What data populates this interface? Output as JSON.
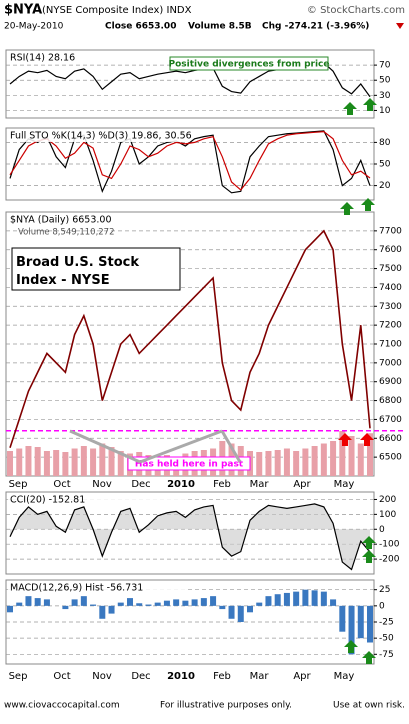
{
  "header": {
    "symbol": "$NYA",
    "name": "(NYSE Composite Index) INDX",
    "source": "© StockCharts.com",
    "date": "20-May-2010",
    "close": "Close 6653.00",
    "volume": "Volume 8.5B",
    "change": "Chg -274.21 (-3.96%)"
  },
  "months": [
    "Sep",
    "Oct",
    "Nov",
    "Dec",
    "2010",
    "Feb",
    "Mar",
    "Apr",
    "May"
  ],
  "footer": {
    "site": "www.ciovaccocapital.com",
    "note": "For illustrative purposes only.",
    "risk": "Use at own risk."
  },
  "chart_data": [
    {
      "type": "line",
      "title": "RSI(14) 28.16",
      "annotation": "Positive divergences from price",
      "ylim": [
        0,
        90
      ],
      "yticks": [
        10,
        30,
        50,
        70
      ],
      "grid": true,
      "series": [
        {
          "color": "#000000",
          "values": [
            45,
            55,
            62,
            60,
            63,
            55,
            52,
            62,
            65,
            55,
            38,
            48,
            58,
            60,
            52,
            55,
            58,
            60,
            62,
            60,
            63,
            65,
            66,
            42,
            35,
            33,
            48,
            55,
            62,
            64,
            66,
            68,
            70,
            72,
            73,
            62,
            40,
            32,
            45,
            28.16
          ]
        }
      ]
    },
    {
      "type": "line",
      "title": "Full STO %K(14,3) %D(3) 19.86, 30.56",
      "ylim": [
        0,
        100
      ],
      "yticks": [
        20,
        50,
        80
      ],
      "grid": true,
      "series": [
        {
          "color": "#000000",
          "values": [
            30,
            70,
            85,
            80,
            88,
            60,
            45,
            85,
            90,
            55,
            12,
            40,
            80,
            85,
            50,
            60,
            75,
            80,
            82,
            75,
            85,
            88,
            90,
            20,
            10,
            12,
            60,
            75,
            88,
            90,
            92,
            93,
            94,
            95,
            96,
            70,
            20,
            30,
            55,
            19.86
          ]
        },
        {
          "color": "#cc0000",
          "values": [
            35,
            55,
            75,
            82,
            85,
            75,
            58,
            65,
            80,
            72,
            35,
            30,
            50,
            75,
            70,
            60,
            65,
            75,
            80,
            78,
            80,
            85,
            88,
            60,
            25,
            14,
            30,
            55,
            78,
            85,
            90,
            92,
            93,
            94,
            95,
            85,
            55,
            35,
            40,
            30.56
          ]
        }
      ]
    },
    {
      "type": "price",
      "title": "$NYA (Daily) 6653.00",
      "subtitle": "Volume 8,549,110,272",
      "annotation": "Broad U.S. Stock Index - NYSE",
      "note": "Has held here in past",
      "ylim": [
        6400,
        7800
      ],
      "yticks": [
        6500,
        6600,
        6700,
        6800,
        6900,
        7000,
        7100,
        7200,
        7300,
        7400,
        7500,
        7600,
        7700
      ],
      "grid": true,
      "support": 6640,
      "support_color": "#ff00ff",
      "series": [
        {
          "color": "#800000",
          "values": [
            6550,
            6700,
            6850,
            6950,
            7050,
            7000,
            6950,
            7150,
            7250,
            7100,
            6800,
            6950,
            7100,
            7150,
            7050,
            7100,
            7150,
            7200,
            7250,
            7300,
            7350,
            7400,
            7450,
            7000,
            6800,
            6750,
            6950,
            7050,
            7200,
            7300,
            7400,
            7500,
            7600,
            7650,
            7700,
            7600,
            7100,
            6800,
            7200,
            6653
          ]
        }
      ],
      "volume": {
        "color": "#e8a0a8",
        "values": [
          5,
          5.5,
          6,
          5.8,
          5,
          5.2,
          4.8,
          5.5,
          6,
          5.5,
          6.5,
          5.8,
          5,
          4.5,
          4.8,
          4.2,
          4,
          4.2,
          3,
          4.5,
          5,
          5.2,
          5.5,
          7,
          6.5,
          6,
          5,
          4.8,
          5,
          5.2,
          5.5,
          5,
          5.5,
          6,
          6.5,
          7,
          9,
          8,
          6.5,
          8.549110272
        ]
      }
    },
    {
      "type": "area",
      "title": "CCI(20) -152.81",
      "ylim": [
        -300,
        250
      ],
      "yticks": [
        -200,
        -100,
        0,
        100,
        200
      ],
      "grid": true,
      "series": [
        {
          "color": "#000000",
          "values": [
            -50,
            80,
            150,
            100,
            120,
            20,
            -20,
            130,
            150,
            0,
            -180,
            -20,
            120,
            140,
            -20,
            30,
            90,
            110,
            120,
            80,
            130,
            150,
            160,
            -120,
            -180,
            -150,
            60,
            120,
            160,
            150,
            140,
            150,
            160,
            170,
            150,
            40,
            -220,
            -270,
            -80,
            -152.81
          ]
        }
      ]
    },
    {
      "type": "bar",
      "title": "MACD(12,26,9) Hist -56.731",
      "ylim": [
        -90,
        40
      ],
      "yticks": [
        -75,
        -50,
        -25,
        0,
        25
      ],
      "grid": true,
      "series": [
        {
          "color": "#3a78c0",
          "values": [
            -10,
            5,
            15,
            12,
            10,
            0,
            -5,
            10,
            15,
            2,
            -20,
            -12,
            5,
            12,
            4,
            2,
            5,
            8,
            10,
            8,
            10,
            12,
            15,
            -5,
            -20,
            -25,
            -10,
            5,
            15,
            18,
            20,
            22,
            25,
            24,
            22,
            10,
            -40,
            -75,
            -50,
            -56.731
          ]
        }
      ]
    }
  ]
}
